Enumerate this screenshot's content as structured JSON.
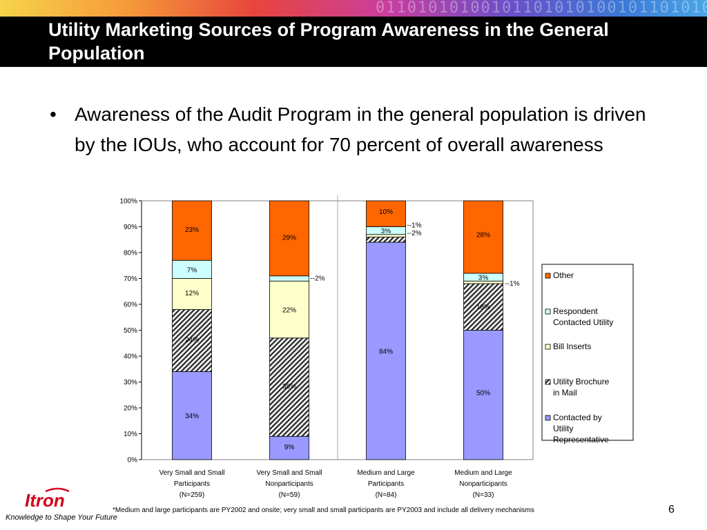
{
  "slide": {
    "title": "Utility Marketing Sources of Program Awareness in the General Population",
    "bullet": "Awareness of the Audit Program in the general population is driven by the IOUs, who account for 70 percent of overall awareness",
    "footnote": "*Medium and large participants are PY2002 and onsite; very small and small participants are PY2003 and include all delivery mechanisms",
    "page_number": "6",
    "tagline": "Knowledge to Shape Your Future",
    "logo_text": "Itron"
  },
  "colors": {
    "banner_bg": "#000000",
    "title_text": "#ffffff",
    "logo_red": "#d2001e"
  },
  "chart_data": {
    "type": "bar",
    "stacked": true,
    "categories": [
      [
        "Very Small and Small",
        "Participants",
        "(N=259)"
      ],
      [
        "Very Small and Small",
        "Nonparticipants",
        "(N=59)"
      ],
      [
        "Medium and Large",
        "Participants",
        "(N=84)"
      ],
      [
        "Medium and Large",
        "Nonparticipants",
        "(N=33)"
      ]
    ],
    "ylim": [
      0,
      100
    ],
    "yticks": [
      "0%",
      "10%",
      "20%",
      "30%",
      "40%",
      "50%",
      "60%",
      "70%",
      "80%",
      "90%",
      "100%"
    ],
    "grid": false,
    "legend_position": "right",
    "series": [
      {
        "name": "Contacted by Utility Representative",
        "color": "#9999ff",
        "pattern": "solid",
        "values": [
          34,
          9,
          84,
          50
        ],
        "labels": [
          "34%",
          "9%",
          "84%",
          "50%"
        ]
      },
      {
        "name": "Utility Brochure in Mail",
        "color": "#555555",
        "pattern": "hatch",
        "values": [
          24,
          38,
          2,
          18
        ],
        "labels": [
          "24%",
          "38%",
          "2%",
          "18%"
        ]
      },
      {
        "name": "Bill Inserts",
        "color": "#ffffcc",
        "pattern": "solid",
        "values": [
          12,
          22,
          1,
          1
        ],
        "labels": [
          "12%",
          "22%",
          "1%",
          "1%"
        ]
      },
      {
        "name": "Respondent Contacted Utility",
        "color": "#ccffff",
        "pattern": "solid",
        "values": [
          7,
          2,
          3,
          3
        ],
        "labels": [
          "7%",
          "2%",
          "3%",
          "3%"
        ]
      },
      {
        "name": "Other",
        "color": "#ff6600",
        "pattern": "solid",
        "values": [
          23,
          29,
          10,
          28
        ],
        "labels": [
          "23%",
          "29%",
          "10%",
          "28%"
        ]
      }
    ],
    "legend_order": [
      "Other",
      "Respondent Contacted Utility",
      "Bill Inserts",
      "Utility Brochure in Mail",
      "Contacted by Utility Representative"
    ]
  }
}
